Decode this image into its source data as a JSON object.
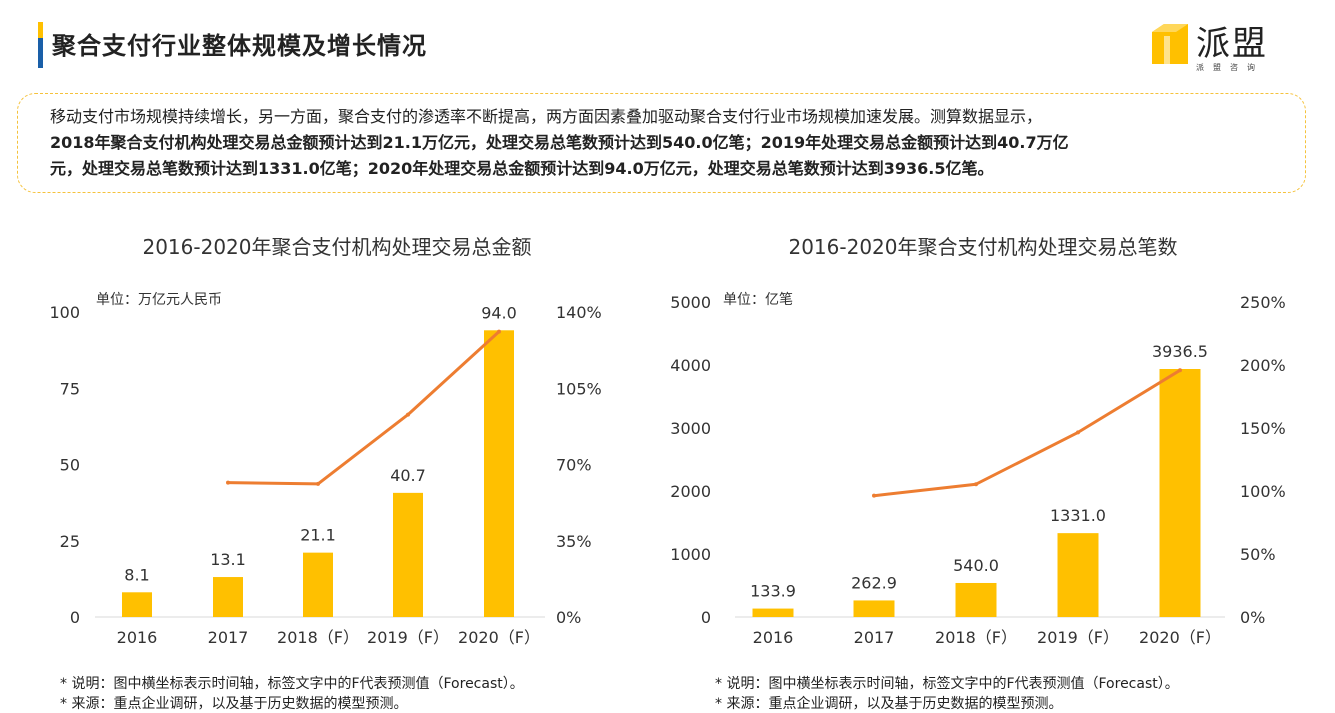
{
  "header": {
    "title": "聚合支付行业整体规模及增长情况",
    "logo_text": "派盟",
    "logo_sub": "派盟咨询",
    "accent_blue": "#1a5fa8",
    "accent_yellow": "#ffc000"
  },
  "summary": {
    "line1": "移动支付市场规模持续增长，另一方面，聚合支付的渗透率不断提高，两方面因素叠加驱动聚合支付行业市场规模加速发展。测算数据显示，",
    "line2": "2018年聚合支付机构处理交易总金额预计达到21.1万亿元，处理交易总笔数预计达到540.0亿笔；2019年处理交易总金额预计达到40.7万亿",
    "line3": "元，处理交易总笔数预计达到1331.0亿笔；2020年处理交易总金额预计达到94.0万亿元，处理交易总笔数预计达到3936.5亿笔。"
  },
  "chart_data": [
    {
      "type": "bar",
      "title": "2016-2020年聚合支付机构处理交易总金额",
      "unit_label": "单位：万亿元人民币",
      "categories": [
        "2016",
        "2017",
        "2018（F）",
        "2019（F）",
        "2020（F）"
      ],
      "series": [
        {
          "type": "bar",
          "values": [
            8.1,
            13.1,
            21.1,
            40.7,
            94.0
          ],
          "labels": [
            "8.1",
            "13.1",
            "21.1",
            "40.7",
            "94.0"
          ],
          "color": "#ffc000",
          "axis": "left"
        },
        {
          "type": "line",
          "values": [
            null,
            61.7,
            61.1,
            92.9,
            131.0
          ],
          "color": "#ed7d31",
          "axis": "right"
        }
      ],
      "y_left": {
        "range": [
          0,
          100
        ],
        "ticks": [
          "0",
          "25",
          "50",
          "75",
          "100"
        ]
      },
      "y_right": {
        "range": [
          0,
          140
        ],
        "ticks": [
          "0%",
          "35%",
          "70%",
          "105%",
          "140%"
        ]
      },
      "grid": false
    },
    {
      "type": "bar",
      "title": "2016-2020年聚合支付机构处理交易总笔数",
      "unit_label": "单位：亿笔",
      "categories": [
        "2016",
        "2017",
        "2018（F）",
        "2019（F）",
        "2020（F）"
      ],
      "series": [
        {
          "type": "bar",
          "values": [
            133.9,
            262.9,
            540.0,
            1331.0,
            3936.5
          ],
          "labels": [
            "133.9",
            "262.9",
            "540.0",
            "1331.0",
            "3936.5"
          ],
          "color": "#ffc000",
          "axis": "left"
        },
        {
          "type": "line",
          "values": [
            null,
            96.3,
            105.4,
            146.5,
            195.8
          ],
          "color": "#ed7d31",
          "axis": "right"
        }
      ],
      "y_left": {
        "range": [
          0,
          5000
        ],
        "ticks": [
          "0",
          "1000",
          "2000",
          "3000",
          "4000",
          "5000"
        ]
      },
      "y_right": {
        "range": [
          0,
          250
        ],
        "ticks": [
          "0%",
          "50%",
          "100%",
          "150%",
          "200%",
          "250%"
        ]
      },
      "grid": false
    }
  ],
  "notes": {
    "left": [
      "* 说明：图中横坐标表示时间轴，标签文字中的F代表预测值（Forecast）。",
      "* 来源：重点企业调研，以及基于历史数据的模型预测。"
    ],
    "right": [
      "* 说明：图中横坐标表示时间轴，标签文字中的F代表预测值（Forecast）。",
      "* 来源：重点企业调研，以及基于历史数据的模型预测。"
    ]
  }
}
